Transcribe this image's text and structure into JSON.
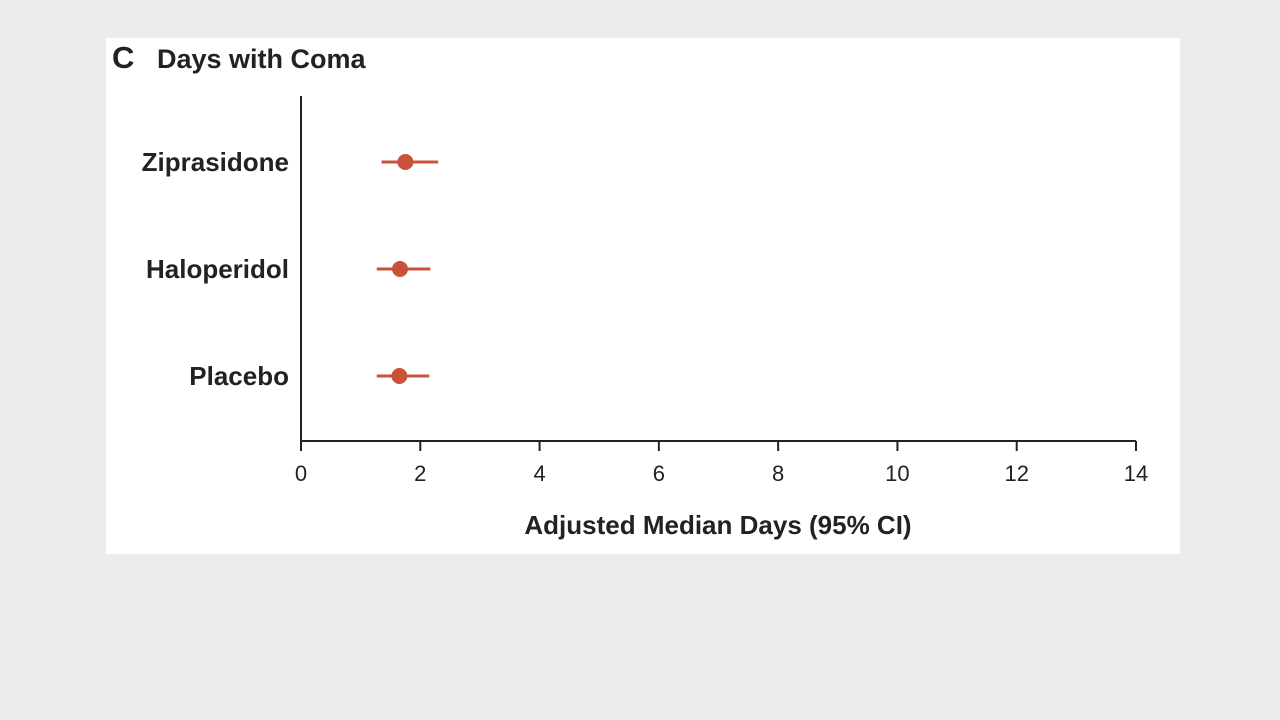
{
  "chart_data": {
    "type": "forest",
    "panel_label": "C",
    "title": "Days with Coma",
    "xlabel": "Adjusted Median Days (95% CI)",
    "ylabel": "",
    "xlim": [
      0,
      14
    ],
    "xticks": [
      0,
      2,
      4,
      6,
      8,
      10,
      12,
      14
    ],
    "categories": [
      "Ziprasidone",
      "Haloperidol",
      "Placebo"
    ],
    "series": [
      {
        "values": [
          1.75,
          1.66,
          1.65
        ],
        "ci_low": [
          1.35,
          1.27,
          1.27
        ],
        "ci_high": [
          2.3,
          2.17,
          2.15
        ]
      }
    ],
    "marker_color": "#c9523a",
    "grid": false
  }
}
